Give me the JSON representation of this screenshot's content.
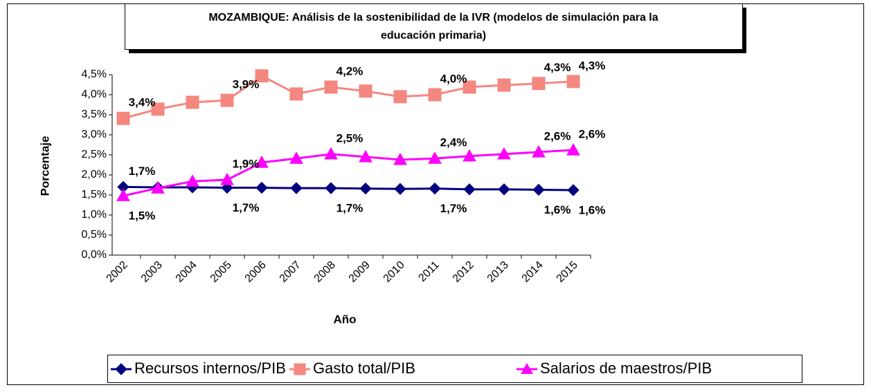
{
  "chart_data": {
    "type": "line",
    "title": [
      "MOZAMBIQUE: Análisis de la sostenibilidad de la IVR  (modelos de simulación para la",
      "educación primaria)"
    ],
    "x_label": "Año",
    "y_label": "Porcentaje",
    "categories": [
      "2002",
      "2003",
      "2004",
      "2005",
      "2006",
      "2007",
      "2008",
      "2009",
      "2010",
      "2011",
      "2012",
      "2013",
      "2014",
      "2015"
    ],
    "ylim": [
      0,
      4.5
    ],
    "yticks": [
      {
        "value": 0,
        "label": "0,0%"
      },
      {
        "value": 0.5,
        "label": "0,5%"
      },
      {
        "value": 1,
        "label": "1,0%"
      },
      {
        "value": 1.5,
        "label": "1,5%"
      },
      {
        "value": 2,
        "label": "2,0%"
      },
      {
        "value": 2.5,
        "label": "2,5%"
      },
      {
        "value": 3,
        "label": "3,0%"
      },
      {
        "value": 3.5,
        "label": "3,5%"
      },
      {
        "value": 4,
        "label": "4,0%"
      },
      {
        "value": 4.5,
        "label": "4,5%"
      }
    ],
    "grid": false,
    "series": [
      {
        "name": "Recursos internos/PIB",
        "color": "#000080",
        "marker": "diamond",
        "values": [
          1.7,
          1.69,
          1.69,
          1.68,
          1.68,
          1.67,
          1.67,
          1.66,
          1.65,
          1.66,
          1.64,
          1.64,
          1.63,
          1.62
        ],
        "value_labels": [
          "1,7%",
          null,
          null,
          "1,7%",
          null,
          null,
          "1,7%",
          null,
          null,
          "1,7%",
          null,
          null,
          "1,6%",
          "1,6%"
        ]
      },
      {
        "name": "Gasto total/PIB",
        "color": "#f4877f",
        "marker": "square",
        "values": [
          3.41,
          3.64,
          3.81,
          3.86,
          4.47,
          4.02,
          4.19,
          4.09,
          3.95,
          4.0,
          4.19,
          4.24,
          4.28,
          4.33
        ],
        "value_labels": [
          "3,4%",
          null,
          null,
          "3,9%",
          null,
          null,
          "4,2%",
          null,
          null,
          "4,0%",
          null,
          null,
          "4,3%",
          "4,3%"
        ]
      },
      {
        "name": "Salarios de maestros/PIB",
        "color": "#ff00ff",
        "marker": "triangle",
        "values": [
          1.48,
          1.67,
          1.84,
          1.88,
          2.31,
          2.41,
          2.52,
          2.45,
          2.38,
          2.41,
          2.47,
          2.52,
          2.57,
          2.62
        ],
        "value_labels": [
          "1,5%",
          null,
          null,
          "1,9%",
          null,
          null,
          "2,5%",
          null,
          null,
          "2,4%",
          null,
          null,
          "2,6%",
          "2,6%"
        ]
      }
    ]
  }
}
